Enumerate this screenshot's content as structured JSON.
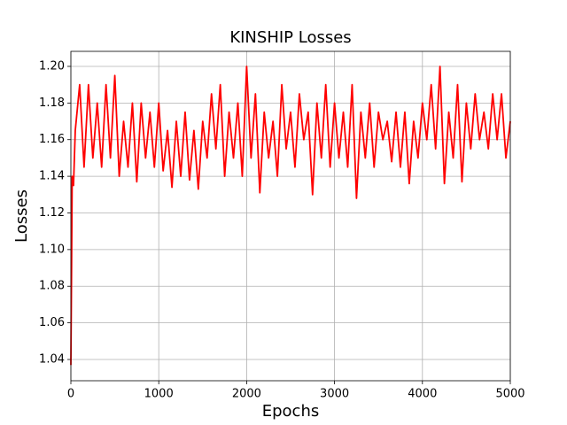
{
  "chart_data": {
    "type": "line",
    "title": "KINSHIP Losses",
    "xlabel": "Epochs",
    "ylabel": "Losses",
    "x": [
      0,
      15,
      30,
      50,
      100,
      150,
      200,
      250,
      300,
      350,
      400,
      450,
      500,
      550,
      600,
      650,
      700,
      750,
      800,
      850,
      900,
      950,
      1000,
      1050,
      1100,
      1150,
      1200,
      1250,
      1300,
      1350,
      1400,
      1450,
      1500,
      1550,
      1600,
      1650,
      1700,
      1750,
      1800,
      1850,
      1900,
      1950,
      2000,
      2050,
      2100,
      2150,
      2200,
      2250,
      2300,
      2350,
      2400,
      2450,
      2500,
      2550,
      2600,
      2650,
      2700,
      2750,
      2800,
      2850,
      2900,
      2950,
      3000,
      3050,
      3100,
      3150,
      3200,
      3250,
      3300,
      3350,
      3400,
      3450,
      3500,
      3550,
      3600,
      3650,
      3700,
      3750,
      3800,
      3850,
      3900,
      3950,
      4000,
      4050,
      4100,
      4150,
      4200,
      4250,
      4300,
      4350,
      4400,
      4450,
      4500,
      4550,
      4600,
      4650,
      4700,
      4750,
      4800,
      4850,
      4900,
      4950,
      5000
    ],
    "values": [
      1.037,
      1.14,
      1.135,
      1.165,
      1.19,
      1.145,
      1.19,
      1.15,
      1.18,
      1.145,
      1.19,
      1.15,
      1.195,
      1.14,
      1.17,
      1.145,
      1.18,
      1.137,
      1.18,
      1.15,
      1.175,
      1.145,
      1.18,
      1.143,
      1.165,
      1.134,
      1.17,
      1.14,
      1.175,
      1.138,
      1.165,
      1.133,
      1.17,
      1.15,
      1.185,
      1.155,
      1.19,
      1.14,
      1.175,
      1.15,
      1.18,
      1.14,
      1.2,
      1.15,
      1.185,
      1.131,
      1.175,
      1.15,
      1.17,
      1.14,
      1.19,
      1.155,
      1.175,
      1.145,
      1.185,
      1.16,
      1.175,
      1.13,
      1.18,
      1.15,
      1.19,
      1.145,
      1.18,
      1.15,
      1.175,
      1.145,
      1.19,
      1.128,
      1.175,
      1.15,
      1.18,
      1.145,
      1.175,
      1.16,
      1.17,
      1.148,
      1.175,
      1.145,
      1.175,
      1.136,
      1.17,
      1.15,
      1.18,
      1.16,
      1.19,
      1.155,
      1.2,
      1.136,
      1.175,
      1.15,
      1.19,
      1.137,
      1.18,
      1.155,
      1.185,
      1.16,
      1.175,
      1.155,
      1.185,
      1.16,
      1.185,
      1.15,
      1.17
    ],
    "color": "#ff0000",
    "xlim": [
      0,
      5000
    ],
    "xticks": [
      0,
      1000,
      2000,
      3000,
      4000,
      5000
    ],
    "ylim": [
      1.0284,
      1.2082
    ],
    "yticks": [
      1.04,
      1.06,
      1.08,
      {
        "value": 1.1,
        "label": "1.10"
      },
      1.12,
      1.14,
      1.16,
      1.18,
      {
        "value": 1.2,
        "label": "1.20"
      }
    ],
    "grid": true
  }
}
